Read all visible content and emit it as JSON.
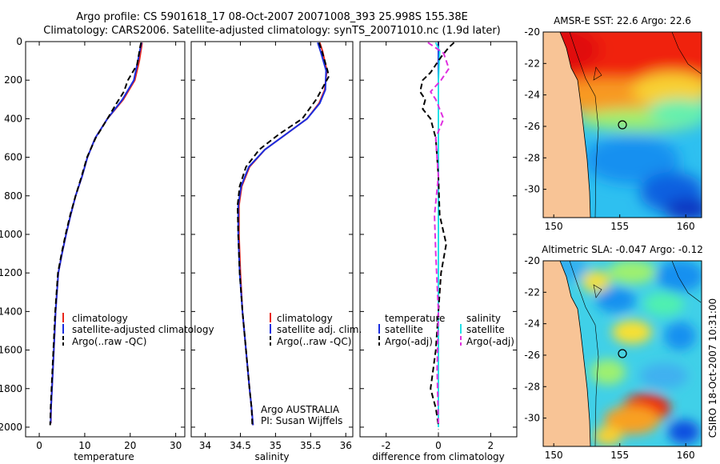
{
  "title_line1": "Argo profile: CS 5901618_17 08-Oct-2007 20071008_393 25.998S 155.38E",
  "title_line2": "Climatology: CARS2006. Satellite-adjusted climatology: synTS_20071010.nc (1.9d later)",
  "side_label": "CSIRO 18-Oct-2007 10:31:00",
  "colors": {
    "climatology": "#e8261a",
    "satellite": "#1a2ee0",
    "argo": "#000000",
    "sat_diff": "#22e0e8",
    "argo_adj": "#e030e0"
  },
  "chart_data": [
    {
      "type": "line",
      "xlabel": "temperature",
      "ylabel": "",
      "xlim": [
        -3,
        32
      ],
      "ylim": [
        2050,
        0
      ],
      "x_ticks": [
        0,
        10,
        20,
        30
      ],
      "y_ticks": [
        0,
        200,
        400,
        600,
        800,
        1000,
        1200,
        1400,
        1600,
        1800,
        2000
      ],
      "legend": [
        "climatology",
        "satellite-adjusted climatology",
        "Argo(..raw -QC)"
      ],
      "legend_position": "lower-right",
      "series": [
        {
          "name": "climatology",
          "color_key": "climatology",
          "dash": "solid",
          "x": [
            22.6,
            22.5,
            22.0,
            21.0,
            18.5,
            15.0,
            12.3,
            10.6,
            9.4,
            8.0,
            6.9,
            5.9,
            5.0,
            4.2,
            3.6,
            3.2,
            2.8,
            2.6,
            2.55
          ],
          "y": [
            5,
            25,
            100,
            200,
            300,
            400,
            500,
            600,
            700,
            800,
            900,
            1000,
            1100,
            1200,
            1400,
            1600,
            1800,
            1900,
            1980
          ]
        },
        {
          "name": "satellite-adjusted climatology",
          "color_key": "satellite",
          "dash": "solid",
          "x": [
            22.5,
            22.3,
            21.7,
            20.8,
            18.3,
            15.0,
            12.3,
            10.6,
            9.4,
            8.0,
            6.9,
            5.9,
            5.0,
            4.2,
            3.6,
            3.2,
            2.8,
            2.6,
            2.5
          ],
          "y": [
            5,
            25,
            100,
            200,
            300,
            400,
            500,
            600,
            700,
            800,
            900,
            1000,
            1100,
            1200,
            1400,
            1600,
            1800,
            1900,
            1980
          ]
        },
        {
          "name": "Argo(..raw -QC)",
          "color_key": "argo",
          "dash": "dash",
          "x": [
            22.4,
            22.2,
            21.5,
            19.5,
            18.6,
            17.0,
            15.0,
            12.4,
            10.5,
            9.3,
            8.0,
            6.8,
            5.8,
            4.9,
            4.1,
            3.5,
            3.1,
            2.7,
            2.5,
            2.4
          ],
          "y": [
            5,
            25,
            120,
            200,
            260,
            320,
            400,
            500,
            600,
            700,
            800,
            900,
            1000,
            1100,
            1200,
            1400,
            1600,
            1800,
            1900,
            1990
          ]
        }
      ]
    },
    {
      "type": "line",
      "xlabel": "salinity",
      "ylabel": "",
      "xlim": [
        33.8,
        36.1
      ],
      "ylim": [
        2050,
        0
      ],
      "x_ticks": [
        34,
        34.5,
        35,
        35.5,
        36
      ],
      "legend": [
        "climatology",
        "satellite adj. clim.",
        "Argo(..raw -QC)"
      ],
      "legend_position": "lower-right",
      "annotation": [
        "Argo AUSTRALIA",
        "PI: Susan Wijffels"
      ],
      "series": [
        {
          "name": "climatology",
          "color_key": "climatology",
          "dash": "solid",
          "x": [
            35.63,
            35.67,
            35.73,
            35.7,
            35.62,
            35.45,
            35.15,
            34.85,
            34.63,
            34.52,
            34.48,
            34.48,
            34.5,
            34.53,
            34.58,
            34.63,
            34.66,
            34.68
          ],
          "y": [
            5,
            50,
            150,
            250,
            320,
            400,
            480,
            560,
            650,
            750,
            850,
            1000,
            1200,
            1400,
            1600,
            1800,
            1900,
            1990
          ]
        },
        {
          "name": "satellite adj. clim.",
          "color_key": "satellite",
          "dash": "solid",
          "x": [
            35.6,
            35.64,
            35.72,
            35.71,
            35.63,
            35.45,
            35.15,
            34.85,
            34.62,
            34.51,
            34.47,
            34.47,
            34.49,
            34.53,
            34.58,
            34.63,
            34.66,
            34.68
          ],
          "y": [
            5,
            50,
            150,
            250,
            320,
            400,
            480,
            560,
            650,
            750,
            850,
            1000,
            1200,
            1400,
            1600,
            1800,
            1900,
            1990
          ]
        },
        {
          "name": "Argo(..raw -QC)",
          "color_key": "argo",
          "dash": "dash",
          "x": [
            35.62,
            35.66,
            35.74,
            35.76,
            35.58,
            35.38,
            35.05,
            34.77,
            34.58,
            34.49,
            34.46,
            34.47,
            34.49,
            34.53,
            34.58,
            34.63,
            34.66,
            34.67
          ],
          "y": [
            5,
            50,
            150,
            180,
            300,
            400,
            480,
            560,
            650,
            750,
            850,
            1000,
            1200,
            1400,
            1600,
            1800,
            1900,
            1990
          ]
        }
      ]
    },
    {
      "type": "line",
      "xlabel": "difference from climatology",
      "ylabel": "",
      "xlim": [
        -3,
        3
      ],
      "ylim": [
        2050,
        0
      ],
      "x_ticks": [
        -2,
        0,
        2
      ],
      "legend_groups": [
        {
          "heading": "temperature",
          "items": [
            "satellite",
            "Argo(-adj)"
          ]
        },
        {
          "heading": "salinity",
          "items": [
            "satellite",
            "Argo(-adj)"
          ]
        }
      ],
      "legend_position": "lower-right",
      "series": [
        {
          "name": "temperature satellite",
          "color_key": "satellite",
          "dash": "solid",
          "x": [
            0.0,
            0.0,
            0.0,
            0.0
          ],
          "y": [
            0,
            500,
            1000,
            2000
          ]
        },
        {
          "name": "salinity satellite",
          "color_key": "sat_diff",
          "dash": "solid",
          "x": [
            -0.1,
            0.05,
            0.0,
            0.0,
            0.0,
            0.0
          ],
          "y": [
            5,
            50,
            200,
            400,
            1000,
            2000
          ]
        },
        {
          "name": "temperature Argo(-adj)",
          "color_key": "argo",
          "dash": "dash",
          "x": [
            0.6,
            0.4,
            0.1,
            -0.3,
            -0.6,
            -0.7,
            -0.5,
            -0.6,
            -0.3,
            -0.1,
            0.0,
            0.05,
            0.3,
            0.1,
            0.0,
            -0.1,
            -0.2,
            -0.3,
            -0.1,
            0.0
          ],
          "y": [
            5,
            30,
            80,
            160,
            200,
            260,
            300,
            350,
            400,
            500,
            700,
            900,
            1050,
            1200,
            1400,
            1600,
            1700,
            1800,
            1900,
            1990
          ]
        },
        {
          "name": "salinity Argo(-adj)",
          "color_key": "argo_adj",
          "dash": "dash",
          "x": [
            -0.4,
            0.2,
            0.4,
            0.1,
            -0.3,
            -0.1,
            0.2,
            -0.1,
            0.0,
            -0.15,
            -0.1,
            0.0,
            -0.05,
            0.0
          ],
          "y": [
            5,
            60,
            140,
            200,
            260,
            300,
            400,
            500,
            700,
            900,
            1100,
            1400,
            1700,
            1990
          ]
        }
      ]
    },
    {
      "type": "heatmap",
      "title": "AMSR-E SST: 22.6  Argo: 22.6",
      "xlim": [
        149.2,
        161.2
      ],
      "ylim": [
        -31.8,
        -20
      ],
      "x_ticks": [
        150,
        155,
        160
      ],
      "y_ticks": [
        -20,
        -22,
        -24,
        -26,
        -28,
        -30
      ],
      "marker": {
        "lon": 155.38,
        "lat": -26.0
      }
    },
    {
      "type": "heatmap",
      "title": "Altimetric SLA: -0.047  Argo: -0.12",
      "xlim": [
        149.2,
        161.2
      ],
      "ylim": [
        -31.8,
        -20
      ],
      "x_ticks": [
        150,
        155,
        160
      ],
      "y_ticks": [
        -20,
        -22,
        -24,
        -26,
        -28,
        -30
      ],
      "marker": {
        "lon": 155.38,
        "lat": -26.0
      }
    }
  ]
}
